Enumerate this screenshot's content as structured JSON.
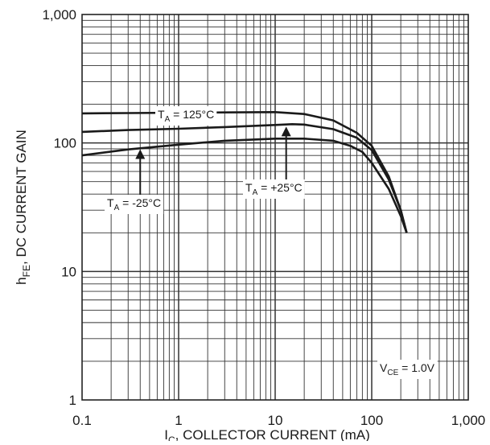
{
  "chart_data": {
    "type": "line",
    "x_scale": "log",
    "y_scale": "log",
    "xlim": [
      0.1,
      1000
    ],
    "ylim": [
      1,
      1000
    ],
    "grid": true,
    "x_ticks": [
      {
        "value": 0.1,
        "label": "0.1"
      },
      {
        "value": 1,
        "label": "1"
      },
      {
        "value": 10,
        "label": "10"
      },
      {
        "value": 100,
        "label": "100"
      },
      {
        "value": 1000,
        "label": "1,000"
      }
    ],
    "y_ticks": [
      {
        "value": 1,
        "label": "1"
      },
      {
        "value": 10,
        "label": "10"
      },
      {
        "value": 100,
        "label": "100"
      },
      {
        "value": 1000,
        "label": "1,000"
      }
    ],
    "xlabel": {
      "main": "I",
      "sub": "C",
      "rest": ", COLLECTOR CURRENT (mA)"
    },
    "ylabel": {
      "main": "h",
      "sub": "FE",
      "rest": ", DC CURRENT GAIN"
    },
    "series": [
      {
        "name": {
          "main": "T",
          "sub": "A",
          "rest": " = 125°C"
        },
        "points": [
          [
            0.1,
            170
          ],
          [
            0.3,
            171
          ],
          [
            1,
            172
          ],
          [
            3,
            173
          ],
          [
            10,
            174
          ],
          [
            20,
            168
          ],
          [
            40,
            150
          ],
          [
            70,
            120
          ],
          [
            100,
            95
          ],
          [
            150,
            55
          ],
          [
            200,
            30
          ],
          [
            230,
            20
          ]
        ]
      },
      {
        "name": {
          "main": "T",
          "sub": "A",
          "rest": " = +25°C"
        },
        "points": [
          [
            0.1,
            122
          ],
          [
            0.3,
            126
          ],
          [
            1,
            129
          ],
          [
            3,
            133
          ],
          [
            10,
            138
          ],
          [
            15,
            140
          ],
          [
            20,
            139
          ],
          [
            40,
            128
          ],
          [
            70,
            110
          ],
          [
            100,
            88
          ],
          [
            150,
            52
          ],
          [
            200,
            30
          ],
          [
            230,
            20
          ]
        ]
      },
      {
        "name": {
          "main": "T",
          "sub": "A",
          "rest": " = -25°C"
        },
        "points": [
          [
            0.1,
            80
          ],
          [
            0.3,
            89
          ],
          [
            1,
            97
          ],
          [
            3,
            104
          ],
          [
            10,
            108
          ],
          [
            20,
            108
          ],
          [
            40,
            104
          ],
          [
            60,
            95
          ],
          [
            80,
            85
          ],
          [
            100,
            70
          ],
          [
            150,
            44
          ],
          [
            200,
            27
          ],
          [
            230,
            20
          ]
        ]
      }
    ],
    "annotations": [
      {
        "series": 0,
        "at": [
          10,
          174
        ]
      },
      {
        "series": 1,
        "at": [
          13,
          138
        ]
      },
      {
        "series": 2,
        "at": [
          0.4,
          92
        ]
      }
    ],
    "condition": {
      "main": "V",
      "sub": "CE",
      "rest": " = 1.0V"
    }
  }
}
